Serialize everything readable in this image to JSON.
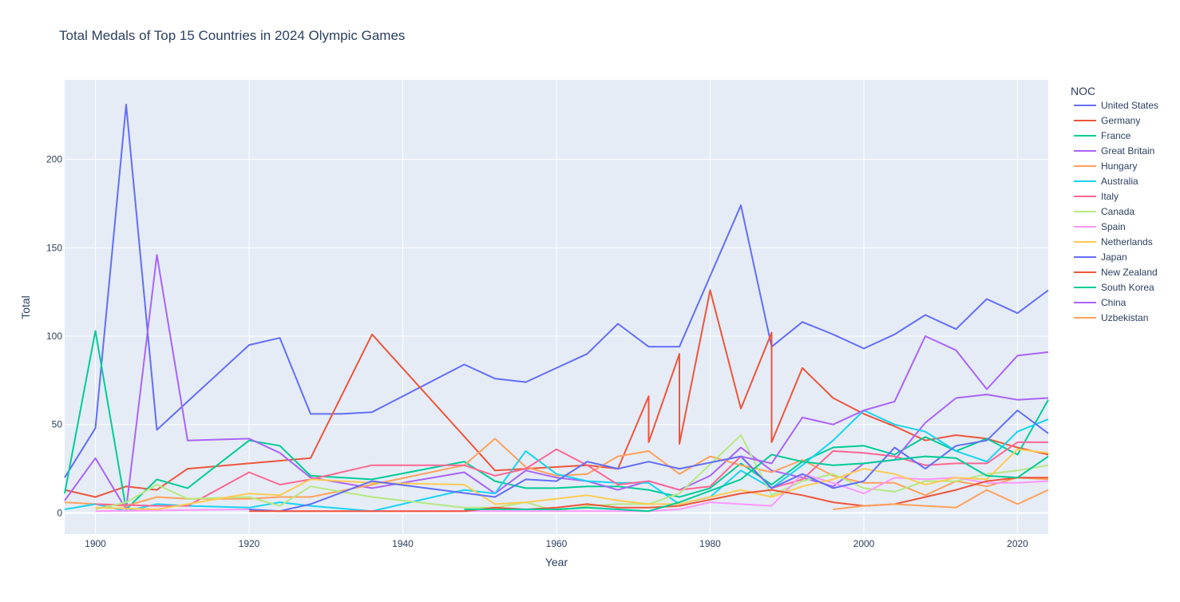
{
  "chart_data": {
    "type": "line",
    "title": "Total Medals of Top 15 Countries in 2024 Olympic Games",
    "xlabel": "Year",
    "ylabel": "Total",
    "xlim": [
      1896,
      2024
    ],
    "ylim": [
      -12,
      245
    ],
    "x_ticks": [
      1900,
      1920,
      1940,
      1960,
      1980,
      2000,
      2020
    ],
    "y_ticks": [
      0,
      50,
      100,
      150,
      200
    ],
    "grid": true,
    "plot_bg": "#e5ecf6",
    "legend_title": "NOC",
    "legend_position": "right",
    "series": [
      {
        "name": "United States",
        "color": "#636efa",
        "x": [
          1896,
          1900,
          1904,
          1908,
          1912,
          1920,
          1924,
          1928,
          1932,
          1936,
          1948,
          1952,
          1956,
          1960,
          1964,
          1968,
          1972,
          1976,
          1984,
          1988,
          1992,
          1996,
          2000,
          2004,
          2008,
          2012,
          2016,
          2020,
          2024
        ],
        "y": [
          20,
          48,
          231,
          47,
          63,
          95,
          99,
          56,
          56,
          57,
          84,
          76,
          74,
          82,
          90,
          107,
          94,
          94,
          174,
          94,
          108,
          101,
          93,
          101,
          112,
          104,
          121,
          113,
          126
        ]
      },
      {
        "name": "Germany",
        "color": "#ef553b",
        "x": [
          1896,
          1900,
          1904,
          1908,
          1912,
          1920,
          1928,
          1936,
          1952,
          1956,
          1960,
          1964,
          1968,
          1968,
          1972,
          1972,
          1976,
          1976,
          1980,
          1984,
          1988,
          1988,
          1992,
          1996,
          2000,
          2004,
          2008,
          2012,
          2016,
          2020,
          2024
        ],
        "y": [
          13,
          9,
          15,
          13,
          25,
          28,
          31,
          101,
          24,
          25,
          26,
          27,
          25,
          25,
          66,
          40,
          90,
          39,
          126,
          59,
          102,
          40,
          82,
          65,
          56,
          49,
          41,
          44,
          42,
          37,
          33
        ]
      },
      {
        "name": "France",
        "color": "#00cc96",
        "x": [
          1896,
          1900,
          1904,
          1908,
          1912,
          1920,
          1924,
          1928,
          1936,
          1948,
          1952,
          1956,
          1960,
          1964,
          1968,
          1972,
          1976,
          1980,
          1984,
          1988,
          1992,
          1996,
          2000,
          2004,
          2008,
          2012,
          2016,
          2020,
          2024
        ],
        "y": [
          11,
          103,
          2,
          19,
          14,
          41,
          38,
          21,
          19,
          29,
          18,
          14,
          14,
          15,
          15,
          13,
          9,
          14,
          28,
          16,
          29,
          37,
          38,
          33,
          43,
          35,
          42,
          33,
          64
        ]
      },
      {
        "name": "Great Britain",
        "color": "#ab63fa",
        "x": [
          1896,
          1900,
          1904,
          1908,
          1912,
          1920,
          1924,
          1928,
          1936,
          1948,
          1952,
          1956,
          1960,
          1964,
          1968,
          1972,
          1976,
          1980,
          1984,
          1988,
          1992,
          1996,
          2000,
          2004,
          2008,
          2012,
          2016,
          2020,
          2024
        ],
        "y": [
          7,
          31,
          2,
          146,
          41,
          42,
          34,
          20,
          14,
          23,
          11,
          24,
          20,
          18,
          13,
          18,
          13,
          21,
          37,
          24,
          20,
          15,
          28,
          30,
          51,
          65,
          67,
          64,
          65
        ]
      },
      {
        "name": "Hungary",
        "color": "#ffa15a",
        "x": [
          1896,
          1900,
          1904,
          1908,
          1912,
          1920,
          1924,
          1928,
          1936,
          1948,
          1952,
          1956,
          1960,
          1964,
          1968,
          1972,
          1976,
          1980,
          1984,
          1988,
          1992,
          1996,
          2000,
          2004,
          2008,
          2012,
          2016,
          2020,
          2024
        ],
        "y": [
          6,
          5,
          4,
          9,
          8,
          8,
          9,
          9,
          16,
          27,
          42,
          26,
          21,
          22,
          32,
          35,
          22,
          32,
          27,
          23,
          30,
          21,
          17,
          17,
          10,
          18,
          15,
          20,
          19
        ]
      },
      {
        "name": "Australia",
        "color": "#19d3f3",
        "x": [
          1896,
          1900,
          1904,
          1908,
          1912,
          1920,
          1924,
          1928,
          1936,
          1948,
          1952,
          1956,
          1960,
          1964,
          1968,
          1972,
          1976,
          1980,
          1984,
          1988,
          1992,
          1996,
          2000,
          2004,
          2008,
          2012,
          2016,
          2020,
          2024
        ],
        "y": [
          2,
          5,
          1,
          5,
          4,
          3,
          6,
          4,
          1,
          13,
          11,
          35,
          22,
          18,
          17,
          17,
          5,
          9,
          24,
          14,
          27,
          41,
          58,
          50,
          46,
          35,
          29,
          46,
          53
        ]
      },
      {
        "name": "Italy",
        "color": "#ff6692",
        "x": [
          1900,
          1908,
          1912,
          1920,
          1924,
          1928,
          1936,
          1948,
          1952,
          1956,
          1960,
          1964,
          1968,
          1972,
          1976,
          1980,
          1984,
          1988,
          1992,
          1996,
          2000,
          2004,
          2008,
          2012,
          2016,
          2020,
          2024
        ],
        "y": [
          5,
          4,
          4,
          23,
          16,
          19,
          27,
          27,
          21,
          25,
          36,
          27,
          16,
          18,
          13,
          15,
          32,
          14,
          19,
          35,
          34,
          32,
          27,
          28,
          28,
          40,
          40
        ]
      },
      {
        "name": "Canada",
        "color": "#b6e880",
        "x": [
          1900,
          1904,
          1908,
          1912,
          1920,
          1924,
          1928,
          1936,
          1948,
          1952,
          1956,
          1960,
          1964,
          1968,
          1972,
          1976,
          1984,
          1988,
          1992,
          1996,
          2000,
          2004,
          2008,
          2012,
          2016,
          2020,
          2024
        ],
        "y": [
          2,
          6,
          16,
          8,
          9,
          4,
          15,
          9,
          3,
          3,
          6,
          1,
          4,
          5,
          5,
          11,
          44,
          10,
          18,
          22,
          14,
          12,
          18,
          18,
          22,
          24,
          27
        ]
      },
      {
        "name": "Spain",
        "color": "#ff97ff",
        "x": [
          1900,
          1920,
          1924,
          1928,
          1932,
          1948,
          1952,
          1960,
          1964,
          1968,
          1972,
          1976,
          1980,
          1984,
          1988,
          1992,
          1996,
          2000,
          2004,
          2008,
          2012,
          2016,
          2020,
          2024
        ],
        "y": [
          1,
          2,
          1,
          1,
          1,
          1,
          1,
          1,
          1,
          1,
          1,
          2,
          6,
          5,
          4,
          22,
          17,
          11,
          20,
          19,
          20,
          17,
          17,
          18
        ]
      },
      {
        "name": "Netherlands",
        "color": "#fecb52",
        "x": [
          1900,
          1908,
          1920,
          1924,
          1928,
          1936,
          1948,
          1952,
          1956,
          1964,
          1968,
          1972,
          1976,
          1984,
          1988,
          1992,
          1996,
          2000,
          2004,
          2008,
          2012,
          2016,
          2020,
          2024
        ],
        "y": [
          3,
          2,
          11,
          10,
          19,
          17,
          16,
          5,
          6,
          10,
          7,
          5,
          5,
          13,
          9,
          15,
          19,
          25,
          22,
          16,
          20,
          19,
          36,
          34
        ]
      },
      {
        "name": "Japan",
        "color": "#636efa",
        "x": [
          1920,
          1924,
          1928,
          1936,
          1952,
          1956,
          1960,
          1964,
          1968,
          1972,
          1976,
          1984,
          1988,
          1992,
          1996,
          2000,
          2004,
          2008,
          2012,
          2016,
          2020,
          2024
        ],
        "y": [
          2,
          1,
          5,
          18,
          9,
          19,
          18,
          29,
          25,
          29,
          25,
          32,
          14,
          22,
          14,
          18,
          37,
          25,
          38,
          41,
          58,
          45
        ]
      },
      {
        "name": "New Zealand",
        "color": "#ef553b",
        "x": [
          1920,
          1928,
          1936,
          1948,
          1952,
          1956,
          1960,
          1964,
          1968,
          1972,
          1976,
          1984,
          1988,
          1992,
          1996,
          2000,
          2004,
          2008,
          2012,
          2016,
          2020,
          2024
        ],
        "y": [
          1,
          1,
          1,
          1,
          3,
          2,
          3,
          5,
          3,
          3,
          4,
          11,
          13,
          10,
          6,
          4,
          5,
          9,
          13,
          18,
          20,
          20
        ]
      },
      {
        "name": "South Korea",
        "color": "#00cc96",
        "x": [
          1948,
          1952,
          1956,
          1960,
          1964,
          1968,
          1972,
          1976,
          1984,
          1988,
          1992,
          1996,
          2000,
          2004,
          2008,
          2012,
          2016,
          2020,
          2024
        ],
        "y": [
          2,
          2,
          2,
          2,
          3,
          2,
          1,
          6,
          19,
          33,
          29,
          27,
          28,
          30,
          32,
          31,
          21,
          20,
          32
        ]
      },
      {
        "name": "China",
        "color": "#ab63fa",
        "x": [
          1984,
          1988,
          1992,
          1996,
          2000,
          2004,
          2008,
          2012,
          2016,
          2020,
          2024
        ],
        "y": [
          32,
          28,
          54,
          50,
          58,
          63,
          100,
          92,
          70,
          89,
          91
        ]
      },
      {
        "name": "Uzbekistan",
        "color": "#ffa15a",
        "x": [
          1996,
          2000,
          2004,
          2008,
          2012,
          2016,
          2020,
          2024
        ],
        "y": [
          2,
          4,
          5,
          4,
          3,
          13,
          5,
          13
        ]
      }
    ]
  }
}
